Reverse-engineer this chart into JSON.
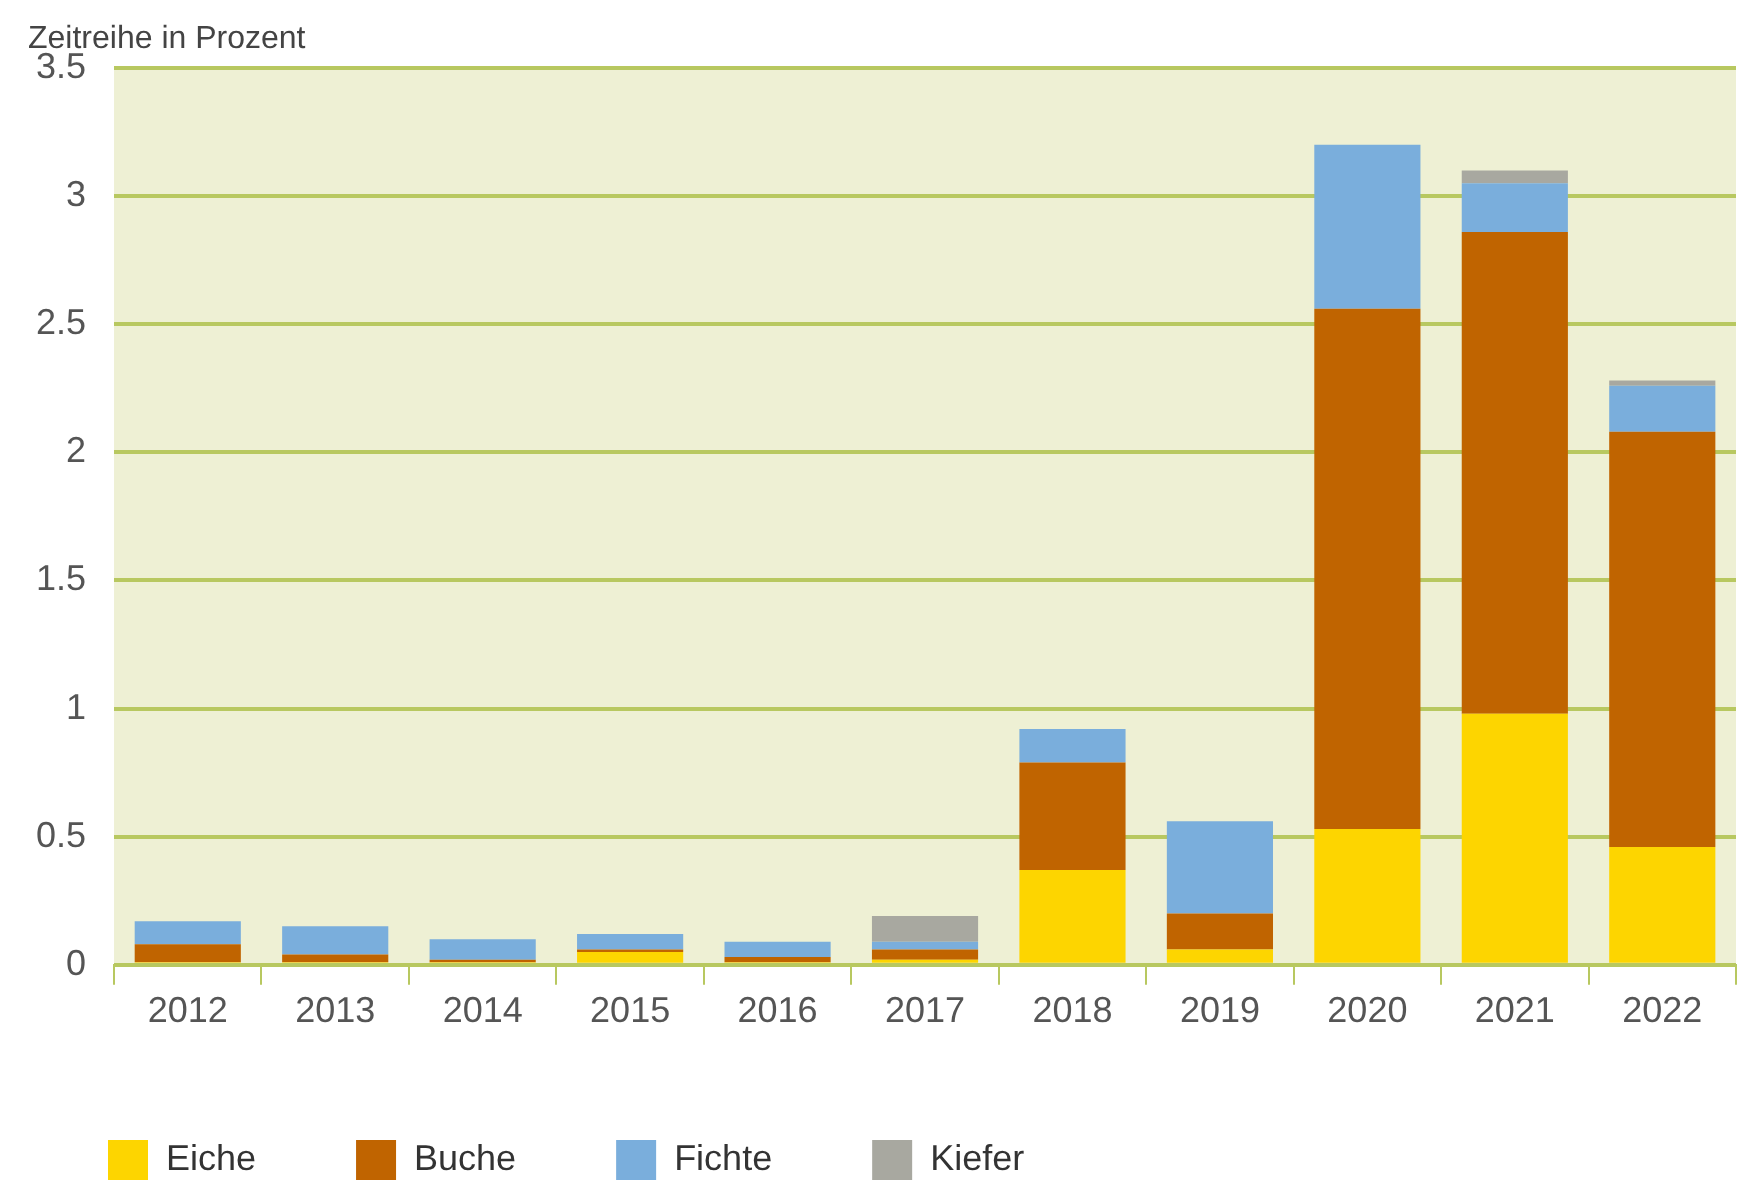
{
  "chart_data": {
    "type": "bar",
    "stacked": true,
    "ylabel": "Zeitreihe in Prozent",
    "categories": [
      "2012",
      "2013",
      "2014",
      "2015",
      "2016",
      "2017",
      "2018",
      "2019",
      "2020",
      "2021",
      "2022"
    ],
    "series": [
      {
        "name": "Eiche",
        "color": "#fdd500",
        "values": [
          0.01,
          0.01,
          0.01,
          0.05,
          0.01,
          0.02,
          0.37,
          0.06,
          0.53,
          0.98,
          0.46
        ]
      },
      {
        "name": "Buche",
        "color": "#c06400",
        "values": [
          0.07,
          0.03,
          0.01,
          0.01,
          0.02,
          0.04,
          0.42,
          0.14,
          2.03,
          1.88,
          1.62
        ]
      },
      {
        "name": "Fichte",
        "color": "#7aaedc",
        "values": [
          0.09,
          0.11,
          0.08,
          0.06,
          0.06,
          0.03,
          0.13,
          0.36,
          0.64,
          0.19,
          0.18
        ]
      },
      {
        "name": "Kiefer",
        "color": "#a8a8a0",
        "values": [
          0,
          0,
          0,
          0,
          0,
          0.1,
          0,
          0,
          0,
          0.05,
          0.02
        ]
      }
    ],
    "ylim": [
      0,
      3.5
    ],
    "yticks": [
      0,
      0.5,
      1,
      1.5,
      2,
      2.5,
      3,
      3.5
    ],
    "grid": "y",
    "legend": "bottom"
  }
}
